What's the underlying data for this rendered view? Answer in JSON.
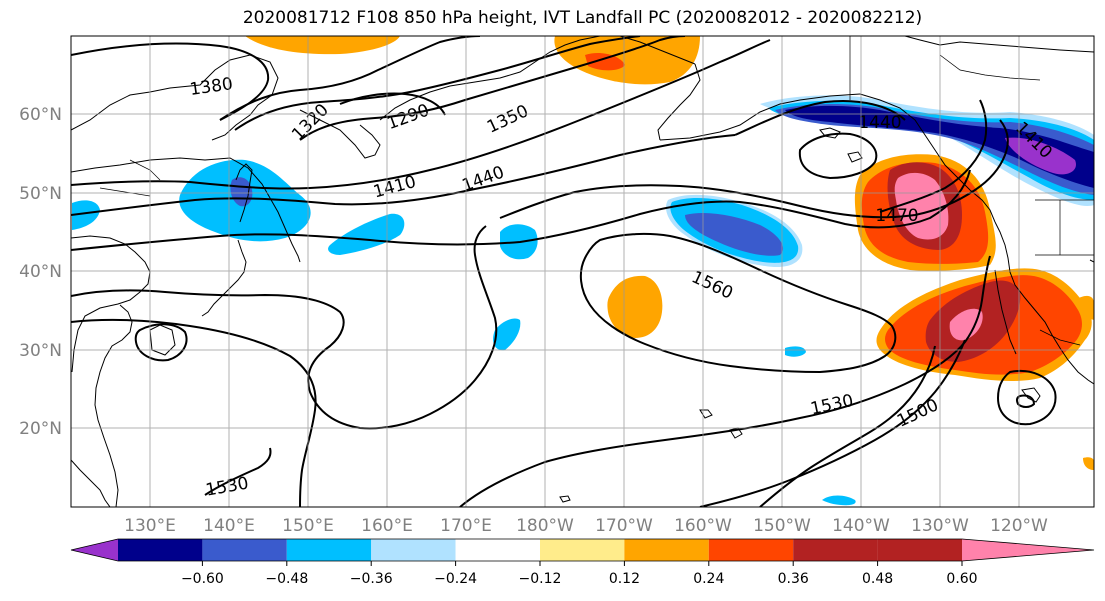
{
  "title": "2020081712 F108 850 hPa height, IVT Landfall PC (2020082012 - 2020082212)",
  "map": {
    "lat_labels": [
      "60°N",
      "50°N",
      "40°N",
      "30°N",
      "20°N"
    ],
    "lon_labels": [
      "130°E",
      "140°E",
      "150°E",
      "160°E",
      "170°E",
      "180°W",
      "170°W",
      "160°W",
      "150°W",
      "140°W",
      "130°W",
      "120°W"
    ],
    "height_contour_labels": [
      "1380",
      "1320",
      "1290",
      "1350",
      "1410",
      "1440",
      "1470",
      "1440",
      "1410",
      "1560",
      "1530",
      "1500",
      "1530"
    ]
  },
  "colorbar": {
    "tick_labels": [
      "−0.60",
      "−0.48",
      "−0.36",
      "−0.24",
      "−0.12",
      "0.12",
      "0.24",
      "0.36",
      "0.48",
      "0.60"
    ],
    "colors": [
      "#9932CC",
      "#00008B",
      "#3A5BCD",
      "#00BFFF",
      "#B0E2FF",
      "#FFFFFF",
      "#FFEC8B",
      "#FFA500",
      "#FF4500",
      "#B22222",
      "#FF82AB"
    ]
  }
}
